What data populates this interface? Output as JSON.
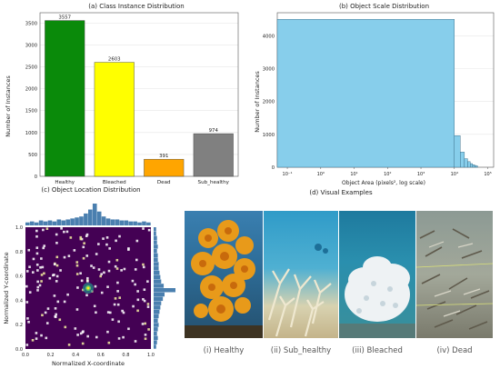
{
  "panel_a": {
    "title": "(a) Class Instance Distribution"
  },
  "panel_b": {
    "title": "(b) Object Scale Distribution"
  },
  "panel_c": {
    "title": "(c) Object Location Distribution"
  },
  "panel_d": {
    "title": "(d) Visual Examples",
    "examples": [
      {
        "label": "(i) Healthy"
      },
      {
        "label": "(ii) Sub_healthy"
      },
      {
        "label": "(iii) Bleached"
      },
      {
        "label": "(iv) Dead"
      }
    ]
  },
  "colors": {
    "Healthy": "#0a8a0a",
    "Bleached": "#ffff00",
    "Dead": "#ffa500",
    "Sub_healthy": "#808080",
    "hist_fill": "#87ceeb",
    "hist_stroke": "#2a5d78",
    "heatmap_bg": "#440154",
    "marginal": "#4a7faf"
  },
  "chart_data": [
    {
      "id": "a",
      "type": "bar",
      "title": "(a) Class Instance Distribution",
      "categories": [
        "Healthy",
        "Bleached",
        "Dead",
        "Sub_healthy"
      ],
      "values": [
        3557,
        2603,
        391,
        974
      ],
      "data_labels": [
        "3557",
        "2603",
        "391",
        "974"
      ],
      "xlabel": "",
      "ylabel": "Number of Instances",
      "ylim": [
        0,
        3735
      ],
      "yticks": [
        0,
        500,
        1000,
        1500,
        2000,
        2500,
        3000,
        3500
      ],
      "grid": "horizontal"
    },
    {
      "id": "b",
      "type": "bar",
      "title": "(b) Object Scale Distribution",
      "xscale": "log",
      "xlabel": "Object Area (pixels², log scale)",
      "ylabel": "Number of Instances",
      "xlim": [
        0.05,
        150000
      ],
      "ylim": [
        0,
        4700
      ],
      "xticks": [
        "10⁻¹",
        "10⁰",
        "10¹",
        "10²",
        "10³",
        "10⁴",
        "10⁵"
      ],
      "yticks": [
        0,
        1000,
        2000,
        3000,
        4000
      ],
      "bins": [
        {
          "x0": 0.05,
          "x1": 10000,
          "count": 4500
        },
        {
          "x0": 10000,
          "x1": 15000,
          "count": 960
        },
        {
          "x0": 15000,
          "x1": 20000,
          "count": 460
        },
        {
          "x0": 20000,
          "x1": 25000,
          "count": 260
        },
        {
          "x0": 25000,
          "x1": 30000,
          "count": 170
        },
        {
          "x0": 30000,
          "x1": 35000,
          "count": 110
        },
        {
          "x0": 35000,
          "x1": 40000,
          "count": 75
        },
        {
          "x0": 40000,
          "x1": 45000,
          "count": 55
        },
        {
          "x0": 45000,
          "x1": 50000,
          "count": 40
        }
      ],
      "grid": "horizontal"
    },
    {
      "id": "c",
      "type": "heatmap",
      "title": "(c) Object Location Distribution",
      "xlabel": "Normalized X-coordinate",
      "ylabel": "Normalized Y-coordinate",
      "xlim": [
        0,
        1
      ],
      "ylim": [
        0,
        1
      ],
      "xticks": [
        "0.0",
        "0.2",
        "0.4",
        "0.6",
        "0.8",
        "1.0"
      ],
      "yticks": [
        "0.0",
        "0.2",
        "0.4",
        "0.6",
        "0.8",
        "1.0"
      ],
      "hotspot": {
        "x": 0.5,
        "y": 0.5
      },
      "marginal_x": [
        3,
        4,
        3,
        5,
        4,
        5,
        4,
        6,
        5,
        6,
        7,
        8,
        9,
        12,
        16,
        22,
        14,
        9,
        7,
        6,
        6,
        5,
        5,
        4,
        4,
        3,
        4,
        3
      ],
      "marginal_y": [
        3,
        4,
        5,
        4,
        5,
        6,
        5,
        6,
        7,
        8,
        9,
        11,
        13,
        26,
        12,
        9,
        8,
        7,
        6,
        6,
        5,
        5,
        4,
        5,
        4,
        4,
        3,
        3
      ]
    }
  ]
}
